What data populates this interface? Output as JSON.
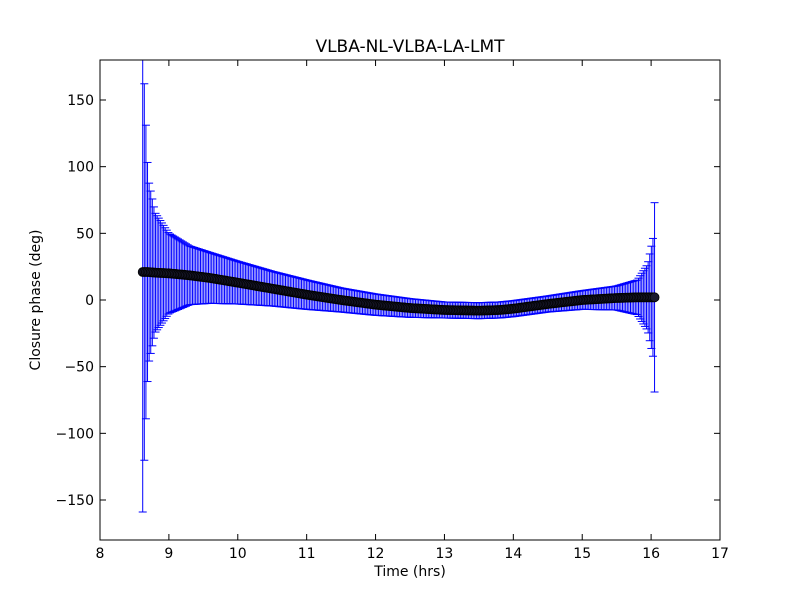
{
  "chart_data": {
    "type": "scatter",
    "title": "VLBA-NL-VLBA-LA-LMT",
    "xlabel": "Time (hrs)",
    "ylabel": "Closure phase (deg)",
    "xlim": [
      8,
      17
    ],
    "ylim": [
      -180,
      180
    ],
    "xticks": [
      8,
      9,
      10,
      11,
      12,
      13,
      14,
      15,
      16,
      17
    ],
    "xtick_labels": [
      "8",
      "9",
      "10",
      "11",
      "12",
      "13",
      "14",
      "15",
      "16",
      "17"
    ],
    "yticks": [
      -150,
      -100,
      -50,
      0,
      50,
      100,
      150
    ],
    "ytick_labels": [
      "−150",
      "−100",
      "−50",
      "0",
      "50",
      "100",
      "150"
    ],
    "grid": false,
    "error_color": "#0000ff",
    "marker_color": "#000000",
    "series": [
      {
        "x": [
          8.62,
          8.65,
          8.7,
          8.8,
          9.0,
          9.3,
          9.6,
          10.0,
          10.5,
          11.0,
          11.5,
          12.0,
          12.5,
          13.0,
          13.5,
          13.8,
          14.0,
          14.5,
          15.0,
          15.5,
          15.8,
          15.95,
          16.03,
          16.05
        ],
        "y": [
          21,
          21,
          21,
          20.5,
          20,
          18.5,
          16.5,
          13,
          8.5,
          4,
          0,
          -3.5,
          -6,
          -7.5,
          -8,
          -7.5,
          -6.5,
          -3,
          0,
          1.5,
          2,
          2,
          2,
          2
        ],
        "err": [
          180,
          130,
          70,
          45,
          30,
          22,
          19,
          16,
          13,
          11,
          9,
          8,
          7,
          6,
          6,
          6,
          6,
          6,
          7,
          9,
          13,
          25,
          45,
          71
        ]
      }
    ]
  }
}
